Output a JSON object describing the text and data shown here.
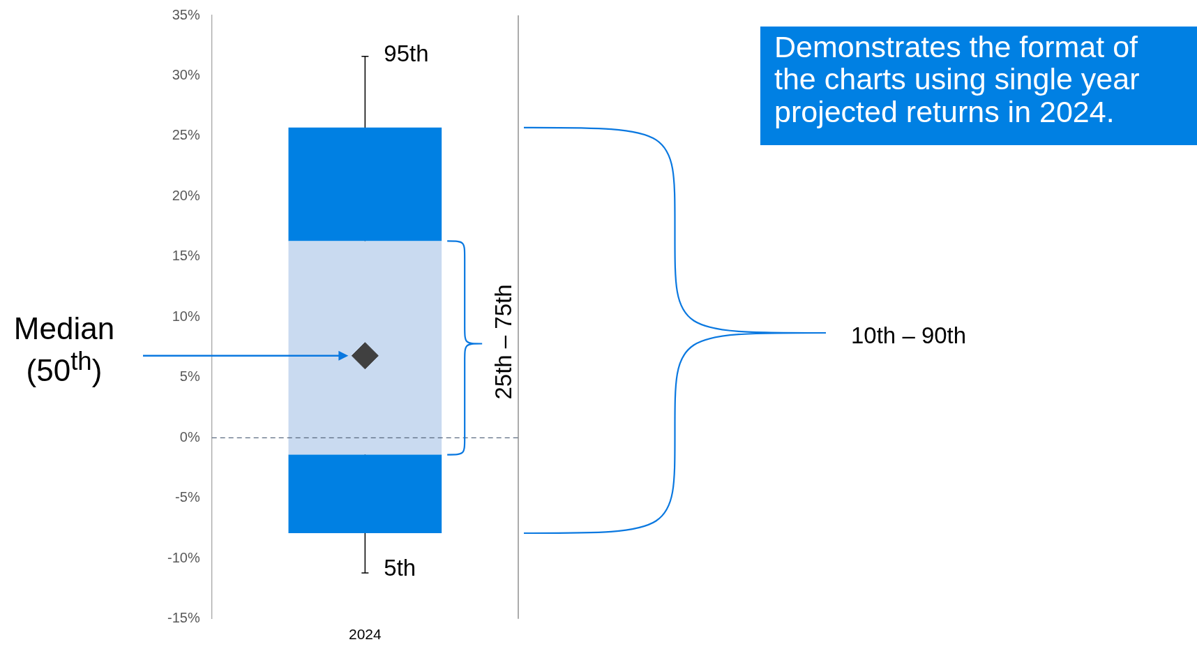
{
  "chart_data": {
    "type": "bar",
    "categories": [
      "2024"
    ],
    "series": [
      {
        "color": "#0080e3",
        "base": [
          -7.9
        ],
        "values": [
          6.5
        ]
      },
      {
        "color": "#c9daf0",
        "base": [
          -1.4
        ],
        "values": [
          17.7
        ]
      },
      {
        "color": "#0080e3",
        "base": [
          16.3
        ],
        "values": [
          9.4
        ]
      },
      {
        "type": "scatter",
        "color": "#404040",
        "values": [
          6.8
        ],
        "errors": [
          [
            -11.2,
            31.6
          ]
        ]
      }
    ],
    "marker": "diamond",
    "ylim": [
      -15,
      35
    ],
    "yticks": [
      {
        "value": -15,
        "label": "-15%"
      },
      {
        "value": -10,
        "label": "-10%"
      },
      {
        "value": -5,
        "label": "-5%"
      },
      {
        "value": 0,
        "label": "0%"
      },
      {
        "value": 5,
        "label": "5%"
      },
      {
        "value": 10,
        "label": "10%"
      },
      {
        "value": 15,
        "label": "15%"
      },
      {
        "value": 20,
        "label": "20%"
      },
      {
        "value": 25,
        "label": "25%"
      },
      {
        "value": 30,
        "label": "30%"
      },
      {
        "value": 35,
        "label": "35%"
      }
    ],
    "grid": false,
    "legend": false,
    "ref_lines": [
      {
        "axis": "y",
        "value": 0,
        "color": "#5a6a80",
        "line_style": "dashed"
      }
    ],
    "annotations": [
      "95th",
      "5th",
      "Median\n(50$^{th}$)",
      "25th – 75th",
      "10th – 90th",
      "Demonstrates the format of the charts using single year projected returns in 2024."
    ]
  }
}
